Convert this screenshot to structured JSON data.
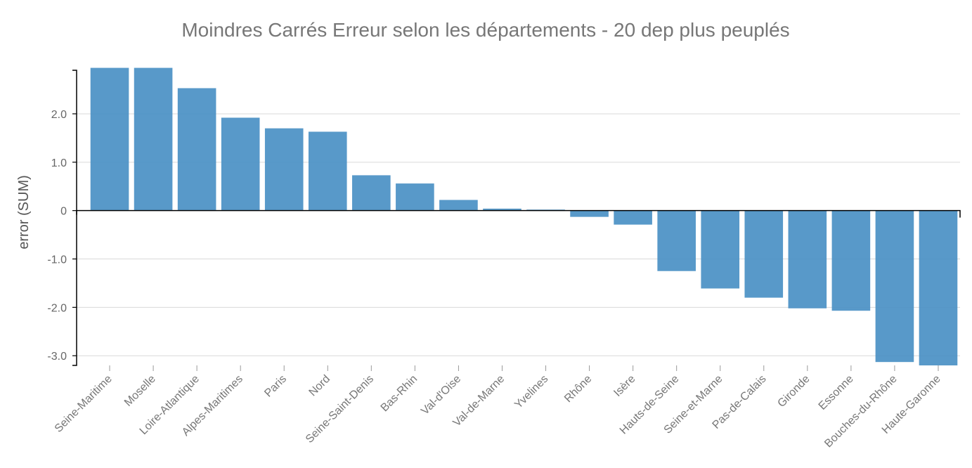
{
  "chart_data": {
    "type": "bar",
    "title": "Moindres Carrés Erreur selon les départements - 20 dep plus peuplés",
    "xlabel": "",
    "ylabel": "error (SUM)",
    "ylim": [
      -3.2,
      2.9
    ],
    "yticks": [
      -3.0,
      -2.0,
      -1.0,
      0,
      1.0,
      2.0
    ],
    "ytick_labels": [
      "-3.0",
      "-2.0",
      "-1.0",
      "0",
      "1.0",
      "2.0"
    ],
    "grid": true,
    "bar_color": "#4a90c4",
    "categories": [
      "Seine-Maritime",
      "Moselle",
      "Loire-Atlantique",
      "Alpes-Maritimes",
      "Paris",
      "Nord",
      "Seine-Saint-Denis",
      "Bas-Rhin",
      "Val-d'Oise",
      "Val-de-Marne",
      "Yvelines",
      "Rhône",
      "Isère",
      "Hauts-de-Seine",
      "Seine-et-Marne",
      "Pas-de-Calais",
      "Gironde",
      "Essonne",
      "Bouches-du-Rhône",
      "Haute-Garonne"
    ],
    "values": [
      2.95,
      2.95,
      2.53,
      1.92,
      1.7,
      1.63,
      0.73,
      0.56,
      0.22,
      0.04,
      0.02,
      -0.13,
      -0.29,
      -1.25,
      -1.61,
      -1.8,
      -2.02,
      -2.07,
      -3.13,
      -3.2
    ]
  }
}
